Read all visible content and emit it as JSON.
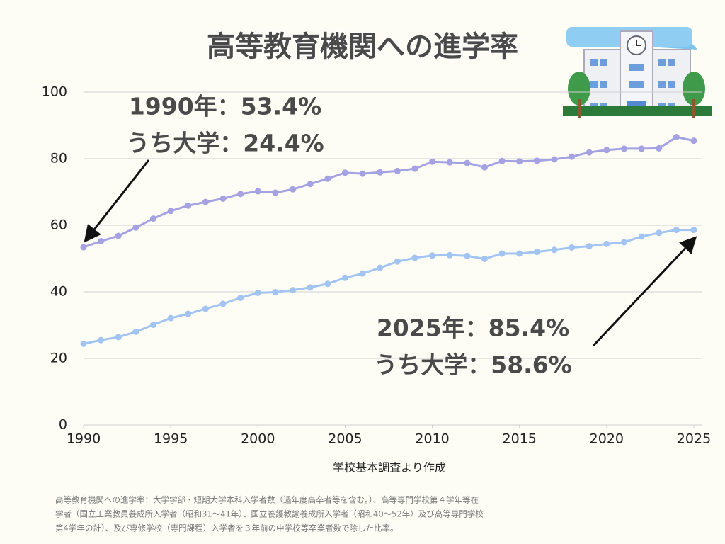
{
  "chart_data": {
    "type": "line",
    "title": "高等教育機関への進学率",
    "xlabel": "学校基本調査より作成",
    "x": [
      1990,
      1991,
      1992,
      1993,
      1994,
      1995,
      1996,
      1997,
      1998,
      1999,
      2000,
      2001,
      2002,
      2003,
      2004,
      2005,
      2006,
      2007,
      2008,
      2009,
      2010,
      2011,
      2012,
      2013,
      2014,
      2015,
      2016,
      2017,
      2018,
      2019,
      2020,
      2021,
      2022,
      2023,
      2024,
      2025
    ],
    "series": [
      {
        "color": "#a4a2e2",
        "values": [
          53.4,
          55.2,
          56.8,
          59.3,
          62.0,
          64.3,
          65.9,
          67.0,
          68.0,
          69.4,
          70.2,
          69.8,
          70.8,
          72.4,
          74.0,
          75.8,
          75.5,
          75.9,
          76.3,
          77.0,
          79.1,
          78.9,
          78.7,
          77.4,
          79.3,
          79.2,
          79.4,
          79.8,
          80.6,
          81.9,
          82.6,
          83.0,
          83.0,
          83.1,
          86.5,
          85.4
        ]
      },
      {
        "color": "#a2c4f2",
        "values": [
          24.4,
          25.5,
          26.4,
          28.0,
          30.1,
          32.1,
          33.4,
          34.9,
          36.4,
          38.2,
          39.7,
          39.9,
          40.5,
          41.3,
          42.4,
          44.2,
          45.5,
          47.2,
          49.1,
          50.2,
          50.9,
          51.0,
          50.8,
          49.9,
          51.5,
          51.5,
          52.0,
          52.6,
          53.3,
          53.7,
          54.4,
          54.9,
          56.6,
          57.7,
          58.6,
          58.6
        ]
      }
    ],
    "xlim": [
      1990,
      2025
    ],
    "xticks": [
      1990,
      1995,
      2000,
      2005,
      2010,
      2015,
      2020,
      2025
    ],
    "ylim": [
      0,
      100
    ],
    "yticks": [
      0,
      20,
      40,
      60,
      80,
      100
    ],
    "grid": true,
    "annotations": [
      [
        "1990年：53.4%",
        "うち大学：24.4%"
      ],
      [
        "2025年：85.4%",
        "うち大学：58.6%"
      ]
    ],
    "note": [
      "高等教育機関への進学率：大学学部・短期大学本科入学者数（過年度高卒者等を含む。）、高等専門学校第４学年等在",
      "学者（国立工業教員養成所入学者（昭和31〜41年）、国立養護教諭養成所入学者（昭和40〜52年）及び高等専門学校",
      "第4学年の計）、及び専修学校（専門課程）入学者を３年前の中学校等卒業者数で除した比率。"
    ]
  }
}
